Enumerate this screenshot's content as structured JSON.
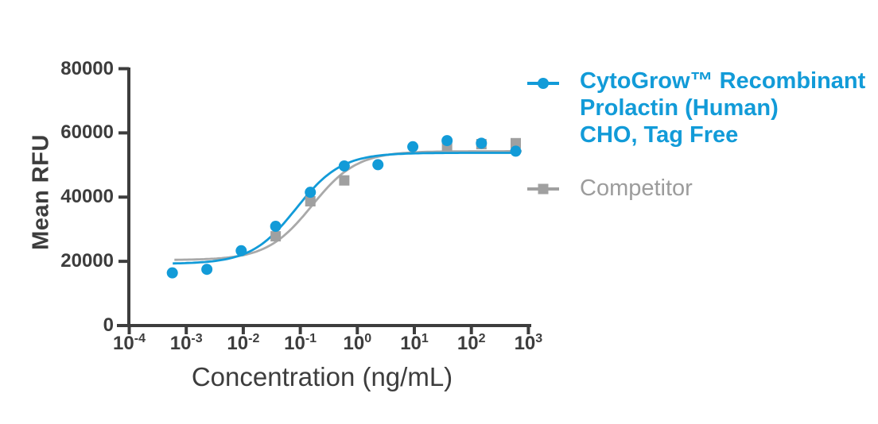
{
  "colors": {
    "blue": "#129bd8",
    "marker_gray": "#a0a0a0",
    "curve_gray": "#a9a9a9",
    "competitor_text_gray": "#9c9c9c",
    "axis_dark": "#3d3d3d"
  },
  "legend": {
    "series1": {
      "lines": [
        "CytoGrow™ Recombinant",
        "Prolactin (Human)",
        "CHO, Tag Free"
      ]
    },
    "series2": {
      "label": "Competitor"
    }
  },
  "chart_data": {
    "type": "scatter",
    "title": "",
    "legend_position": "right",
    "x_axis": {
      "label": "Concentration (ng/mL)",
      "scale": "log10",
      "tick_exponents": [
        -4,
        -3,
        -2,
        -1,
        0,
        1,
        2,
        3
      ],
      "range": [
        0.0001,
        1000
      ]
    },
    "y_axis": {
      "label": "Mean RFU",
      "ticks": [
        0,
        20000,
        40000,
        60000,
        80000
      ],
      "range": [
        0,
        80000
      ]
    },
    "series": [
      {
        "name": "CytoGrow™ Recombinant Prolactin (Human) CHO, Tag Free",
        "marker": "circle",
        "color": "#129bd8",
        "x": [
          0.00057,
          0.0023,
          0.0092,
          0.037,
          0.15,
          0.59,
          2.3,
          9.4,
          37.5,
          150,
          600
        ],
        "y": [
          16400,
          17500,
          23300,
          30900,
          41500,
          49700,
          50100,
          55700,
          57600,
          56800,
          54300
        ],
        "fit_curve": {
          "model": "4PL",
          "bottom": 19200,
          "top": 53800,
          "ec50": 0.085,
          "hill": 1.1,
          "x_start": 0.00058,
          "x_end": 700
        }
      },
      {
        "name": "Competitor",
        "marker": "square",
        "color": "#a0a0a0",
        "x": [
          0.037,
          0.15,
          0.59,
          37.5,
          150,
          600
        ],
        "y": [
          27800,
          38700,
          45200,
          56000,
          56500,
          56800
        ],
        "fit_curve": {
          "model": "4PL",
          "bottom": 20400,
          "top": 54300,
          "ec50": 0.16,
          "hill": 1.1,
          "x_start": 0.00062,
          "x_end": 760
        }
      }
    ]
  }
}
